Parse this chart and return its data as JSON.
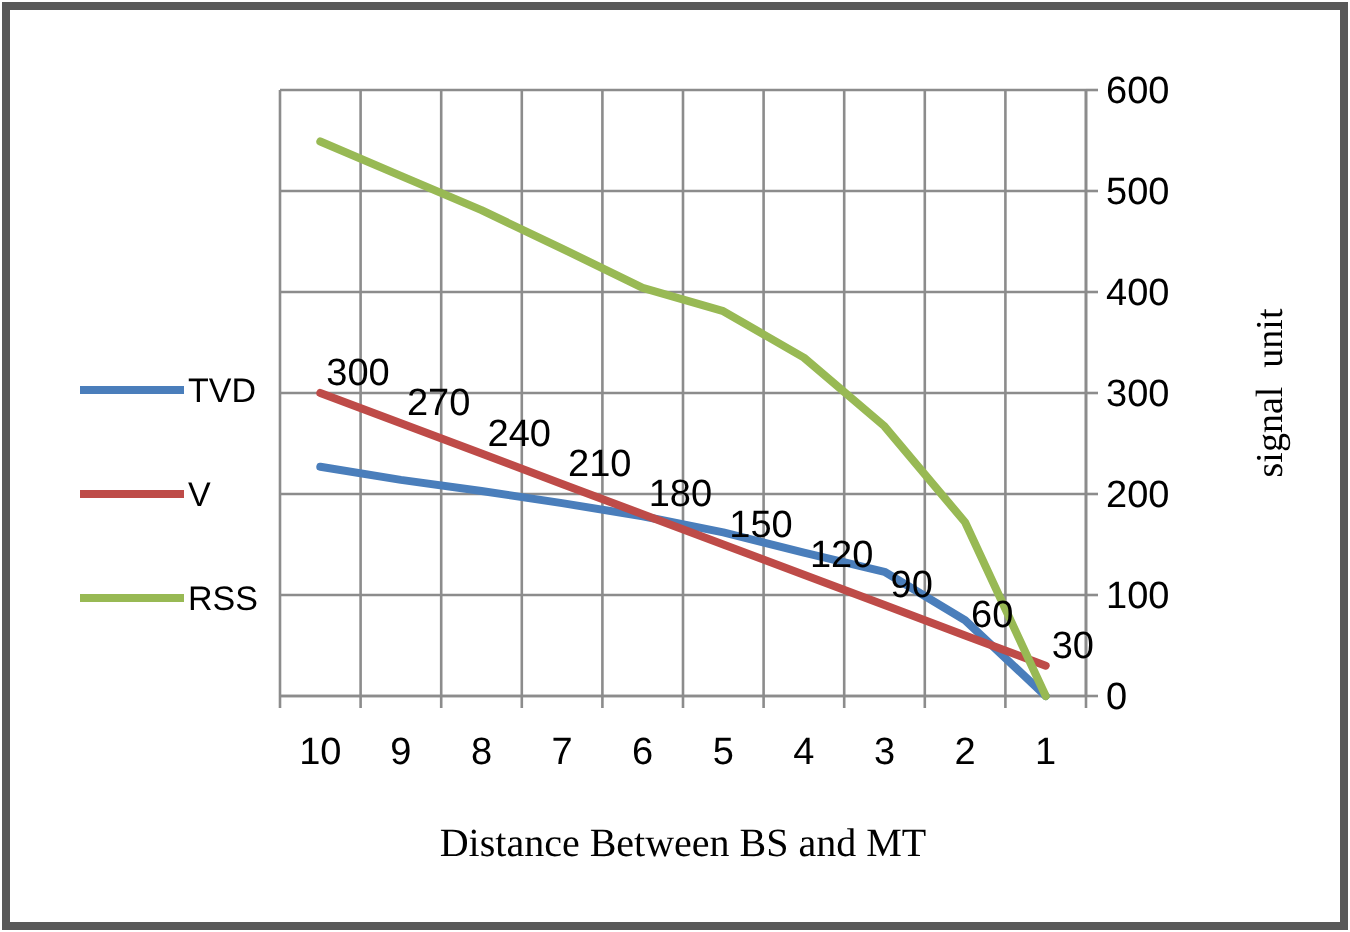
{
  "chart_data": {
    "type": "line",
    "xlabel": "Distance Between BS and MT",
    "ylabel": "signal  unit",
    "categories": [
      "10",
      "9",
      "8",
      "7",
      "6",
      "5",
      "4",
      "3",
      "2",
      "1"
    ],
    "series": [
      {
        "name": "TVD",
        "color": "#4a7ebb",
        "values": [
          227,
          214,
          203,
          191,
          178,
          162,
          142,
          123,
          75,
          0
        ]
      },
      {
        "name": "V",
        "color": "#be4b48",
        "values": [
          300,
          270,
          240,
          210,
          180,
          150,
          120,
          90,
          60,
          30
        ],
        "value_labels": [
          "300",
          "270",
          "240",
          "210",
          "180",
          "150",
          "120",
          "90",
          "60",
          "30"
        ]
      },
      {
        "name": "RSS",
        "color": "#98b954",
        "values": [
          549,
          515,
          481,
          443,
          404,
          381,
          335,
          267,
          172,
          0
        ]
      }
    ],
    "ylim": [
      0,
      600
    ],
    "yticks": [
      0,
      100,
      200,
      300,
      400,
      500,
      600
    ],
    "grid": true,
    "legend": "left",
    "marker": "none",
    "line_style": "solid"
  }
}
